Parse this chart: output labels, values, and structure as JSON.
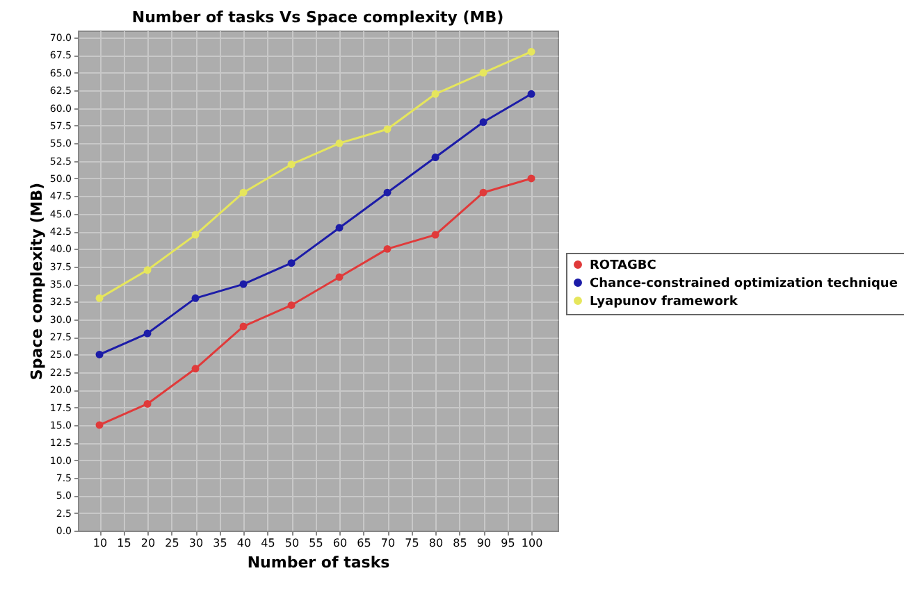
{
  "chart_data": {
    "type": "line",
    "title": "Number of tasks Vs Space complexity (MB)",
    "xlabel": "Number of tasks",
    "ylabel": "Space complexity (MB)",
    "x": [
      10,
      20,
      30,
      40,
      50,
      60,
      70,
      80,
      90,
      100
    ],
    "series": [
      {
        "name": "ROTAGBC",
        "color": "#e03a3a",
        "values": [
          15,
          18,
          23,
          29,
          32,
          36,
          40,
          42,
          48,
          50
        ]
      },
      {
        "name": "Chance-constrained optimization technique",
        "color": "#1c1ca8",
        "values": [
          25,
          28,
          33,
          35,
          38,
          43,
          48,
          53,
          58,
          62
        ]
      },
      {
        "name": "Lyapunov framework",
        "color": "#e6e65c",
        "values": [
          33,
          37,
          42,
          48,
          52,
          55,
          57,
          62,
          65,
          68
        ]
      }
    ],
    "xlim": [
      5.5,
      105.5
    ],
    "xticks": [
      10,
      15,
      20,
      25,
      30,
      35,
      40,
      45,
      50,
      55,
      60,
      65,
      70,
      75,
      80,
      85,
      90,
      95,
      100
    ],
    "ylim": [
      0,
      71
    ],
    "yticks": [
      {
        "value": 0,
        "label": "0.0"
      },
      {
        "value": 2.5,
        "label": "2.5"
      },
      {
        "value": 5,
        "label": "5.0"
      },
      {
        "value": 7.5,
        "label": "7.5"
      },
      {
        "value": 10,
        "label": "10.0"
      },
      {
        "value": 12.5,
        "label": "12.5"
      },
      {
        "value": 15,
        "label": "15.0"
      },
      {
        "value": 17.5,
        "label": "17.5"
      },
      {
        "value": 20,
        "label": "20.0"
      },
      {
        "value": 22.5,
        "label": "22.5"
      },
      {
        "value": 25,
        "label": "25.0"
      },
      {
        "value": 27.5,
        "label": "27.5"
      },
      {
        "value": 30,
        "label": "30.0"
      },
      {
        "value": 32.5,
        "label": "32.5"
      },
      {
        "value": 35,
        "label": "35.0"
      },
      {
        "value": 37.5,
        "label": "37.5"
      },
      {
        "value": 40,
        "label": "40.0"
      },
      {
        "value": 42.5,
        "label": "42.5"
      },
      {
        "value": 45,
        "label": "45.0"
      },
      {
        "value": 47.5,
        "label": "47.5"
      },
      {
        "value": 50,
        "label": "50.0"
      },
      {
        "value": 52.5,
        "label": "52.5"
      },
      {
        "value": 55,
        "label": "55.0"
      },
      {
        "value": 57.5,
        "label": "57.5"
      },
      {
        "value": 60,
        "label": "60.0"
      },
      {
        "value": 62.5,
        "label": "62.5"
      },
      {
        "value": 65,
        "label": "65.0"
      },
      {
        "value": 67.5,
        "label": "67.5"
      },
      {
        "value": 70,
        "label": "70.0"
      }
    ],
    "grid": true,
    "legend": "right",
    "marker": "circle"
  }
}
